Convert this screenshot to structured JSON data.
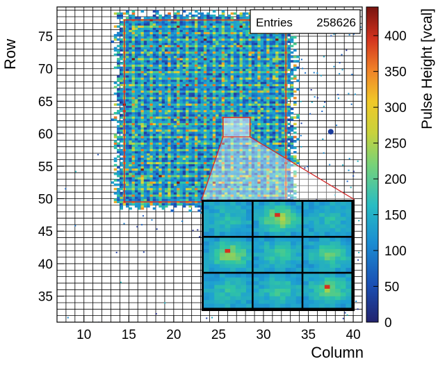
{
  "chart_data": {
    "type": "heatmap",
    "xlabel": "Column",
    "ylabel": "Row",
    "colorbar_label": "Pulse Height [vcal]",
    "xlim": [
      7,
      41
    ],
    "ylim": [
      31,
      79.5
    ],
    "x_ticks": [
      10,
      15,
      20,
      25,
      30,
      35,
      40
    ],
    "y_ticks": [
      35,
      40,
      45,
      50,
      55,
      60,
      65,
      70,
      75
    ],
    "colorbar_range": [
      0,
      440
    ],
    "colorbar_ticks": [
      0,
      50,
      100,
      150,
      200,
      250,
      300,
      350,
      400
    ],
    "stats_box": {
      "label": "Entries",
      "value": "258626"
    },
    "grid": true,
    "active_region": {
      "columns": [
        13,
        34
      ],
      "rows": [
        48,
        79
      ]
    },
    "red_frame": {
      "columns": [
        14.5,
        32.5
      ],
      "rows": [
        49.5,
        77.5
      ]
    },
    "zoom_source": {
      "columns": [
        25.5,
        28.5
      ],
      "rows": [
        59.5,
        62.5
      ]
    },
    "zoom_cells": [
      [
        150,
        230,
        150
      ],
      [
        230,
        170,
        190
      ],
      [
        160,
        170,
        210
      ]
    ],
    "hotspot": {
      "column": 37.5,
      "row": 60.3
    },
    "colormap": [
      "#282a8c",
      "#1a64c8",
      "#1ea0d2",
      "#32c8a0",
      "#a0d250",
      "#ebd232",
      "#f08228",
      "#d2281e",
      "#82140f"
    ]
  }
}
